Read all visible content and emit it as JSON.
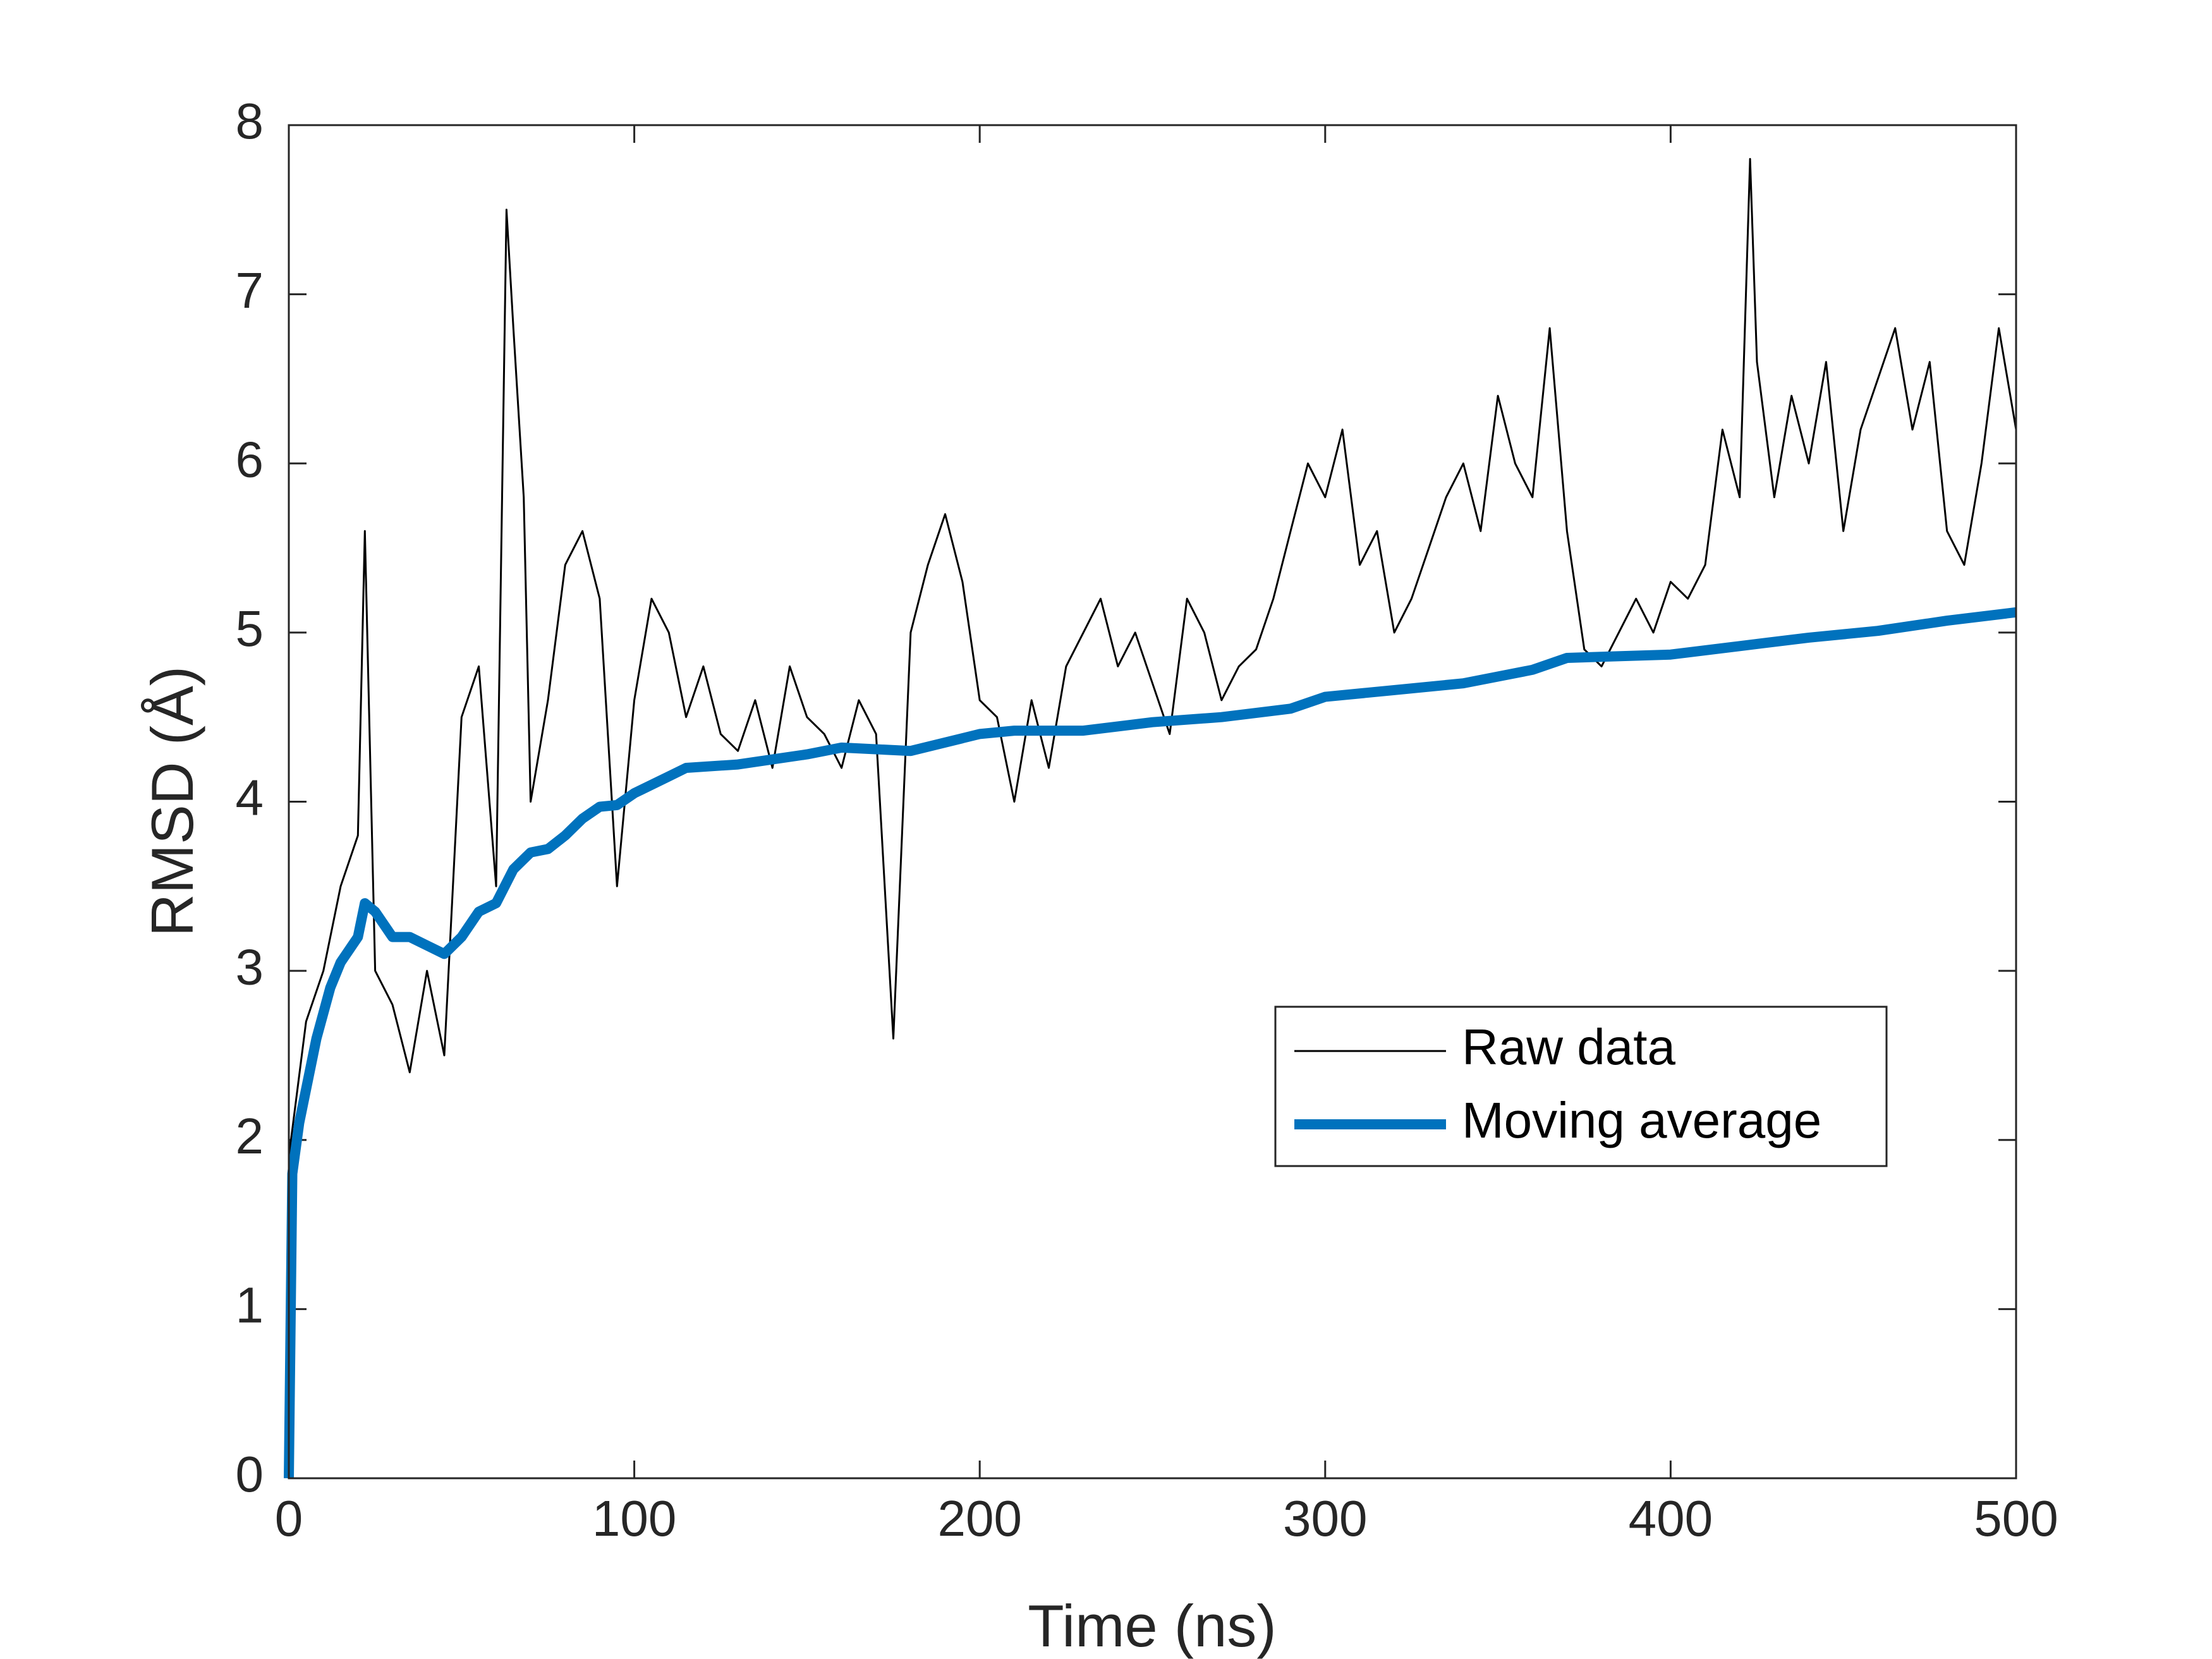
{
  "chart_data": {
    "type": "line",
    "xlabel": "Time (ns)",
    "ylabel": "RMSD (Å)",
    "xlim": [
      0,
      500
    ],
    "xticks": [
      0,
      100,
      200,
      300,
      400,
      500
    ],
    "ylim": [
      0,
      8
    ],
    "yticks": [
      0,
      1,
      2,
      3,
      4,
      5,
      6,
      7,
      8
    ],
    "legend": "lower right",
    "series": [
      {
        "name": "Raw data",
        "color": "#000000",
        "x": [
          0,
          5,
          10,
          15,
          20,
          22,
          25,
          30,
          35,
          40,
          45,
          50,
          55,
          60,
          63,
          65,
          68,
          70,
          75,
          80,
          85,
          90,
          95,
          100,
          105,
          110,
          115,
          120,
          125,
          130,
          135,
          140,
          145,
          150,
          155,
          160,
          165,
          170,
          175,
          180,
          185,
          190,
          195,
          200,
          205,
          210,
          215,
          220,
          225,
          230,
          235,
          240,
          245,
          250,
          255,
          260,
          265,
          270,
          275,
          280,
          285,
          290,
          295,
          300,
          305,
          310,
          315,
          320,
          325,
          330,
          335,
          340,
          345,
          350,
          355,
          360,
          365,
          370,
          375,
          380,
          385,
          390,
          395,
          400,
          405,
          410,
          415,
          420,
          423,
          425,
          430,
          435,
          440,
          445,
          450,
          455,
          460,
          465,
          470,
          475,
          480,
          485,
          490,
          495,
          500
        ],
        "values": [
          1.9,
          2.7,
          3.0,
          3.5,
          3.8,
          5.6,
          3.0,
          2.8,
          2.4,
          3.0,
          2.5,
          4.5,
          4.8,
          3.5,
          7.5,
          6.8,
          5.8,
          4.0,
          4.6,
          5.4,
          5.6,
          5.2,
          3.5,
          4.6,
          5.2,
          5.0,
          4.5,
          4.8,
          4.4,
          4.3,
          4.6,
          4.2,
          4.8,
          4.5,
          4.4,
          4.2,
          4.6,
          4.4,
          2.6,
          5.0,
          5.4,
          5.7,
          5.3,
          4.6,
          4.5,
          4.0,
          4.6,
          4.2,
          4.8,
          5.0,
          5.2,
          4.8,
          5.0,
          4.7,
          4.4,
          5.2,
          5.0,
          4.6,
          4.8,
          4.9,
          5.2,
          5.6,
          6.0,
          5.8,
          6.2,
          5.4,
          5.6,
          5.0,
          5.2,
          5.5,
          5.8,
          6.0,
          5.6,
          6.4,
          6.0,
          5.8,
          6.8,
          5.6,
          4.9,
          4.8,
          5.0,
          5.2,
          5.0,
          5.3,
          5.2,
          5.4,
          6.2,
          5.8,
          7.8,
          6.6,
          5.8,
          6.4,
          6.0,
          6.6,
          5.6,
          6.2,
          6.5,
          6.8,
          6.2,
          6.6,
          5.6,
          5.4,
          6.0,
          6.8,
          6.2
        ]
      },
      {
        "name": "Moving average",
        "color": "#0072BD",
        "x": [
          0,
          1,
          3,
          5,
          8,
          12,
          15,
          20,
          22,
          25,
          30,
          35,
          40,
          45,
          50,
          55,
          60,
          65,
          70,
          75,
          80,
          85,
          90,
          95,
          100,
          110,
          115,
          130,
          150,
          160,
          180,
          200,
          210,
          230,
          250,
          270,
          290,
          300,
          320,
          340,
          360,
          370,
          400,
          420,
          440,
          460,
          480,
          500
        ],
        "values": [
          0,
          1.8,
          2.1,
          2.3,
          2.6,
          2.9,
          3.05,
          3.2,
          3.4,
          3.35,
          3.2,
          3.2,
          3.15,
          3.1,
          3.2,
          3.35,
          3.4,
          3.6,
          3.7,
          3.72,
          3.8,
          3.9,
          3.97,
          3.98,
          4.05,
          4.15,
          4.2,
          4.22,
          4.28,
          4.32,
          4.3,
          4.4,
          4.42,
          4.42,
          4.47,
          4.5,
          4.55,
          4.62,
          4.66,
          4.7,
          4.78,
          4.85,
          4.87,
          4.92,
          4.97,
          5.01,
          5.07,
          5.12
        ]
      }
    ]
  }
}
